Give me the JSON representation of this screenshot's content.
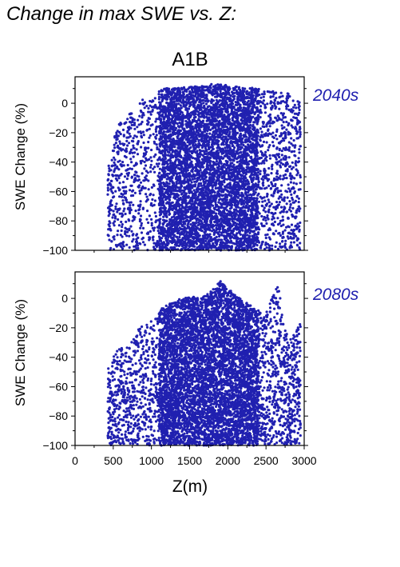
{
  "header": {
    "title": "Change in max SWE vs. Z:"
  },
  "chart_data": {
    "type": "scatter",
    "scenario": "A1B",
    "xlabel": "Z(m)",
    "xlim": [
      0,
      3000
    ],
    "xticks": [
      0,
      500,
      1000,
      1500,
      2000,
      2500,
      3000
    ],
    "point_color": "#2020b0",
    "grid": false,
    "panels": [
      {
        "label": "2040s",
        "ylabel": "SWE Change (%)",
        "ylim": [
          -100,
          18
        ],
        "yticks": [
          0,
          -20,
          -40,
          -60,
          -80,
          -100
        ],
        "envelope": [
          {
            "z": 430,
            "max": -40
          },
          {
            "z": 550,
            "max": -15
          },
          {
            "z": 700,
            "max": -8
          },
          {
            "z": 850,
            "max": 2
          },
          {
            "z": 1000,
            "max": 5
          },
          {
            "z": 1150,
            "max": 10
          },
          {
            "z": 1500,
            "max": 11
          },
          {
            "z": 1800,
            "max": 13
          },
          {
            "z": 2100,
            "max": 12
          },
          {
            "z": 2400,
            "max": 10
          },
          {
            "z": 2600,
            "max": 8
          },
          {
            "z": 2800,
            "max": 8
          },
          {
            "z": 2950,
            "max": 0
          }
        ]
      },
      {
        "label": "2080s",
        "ylabel": "SWE Change (%)",
        "ylim": [
          -100,
          18
        ],
        "yticks": [
          0,
          -20,
          -40,
          -60,
          -80,
          -100
        ],
        "envelope": [
          {
            "z": 430,
            "max": -45
          },
          {
            "z": 550,
            "max": -35
          },
          {
            "z": 700,
            "max": -30
          },
          {
            "z": 850,
            "max": -20
          },
          {
            "z": 1000,
            "max": -15
          },
          {
            "z": 1150,
            "max": -5
          },
          {
            "z": 1400,
            "max": 0
          },
          {
            "z": 1700,
            "max": 2
          },
          {
            "z": 1900,
            "max": 12
          },
          {
            "z": 2100,
            "max": 2
          },
          {
            "z": 2300,
            "max": -5
          },
          {
            "z": 2500,
            "max": -10
          },
          {
            "z": 2650,
            "max": 11
          },
          {
            "z": 2800,
            "max": -30
          },
          {
            "z": 2950,
            "max": -15
          }
        ]
      }
    ]
  }
}
